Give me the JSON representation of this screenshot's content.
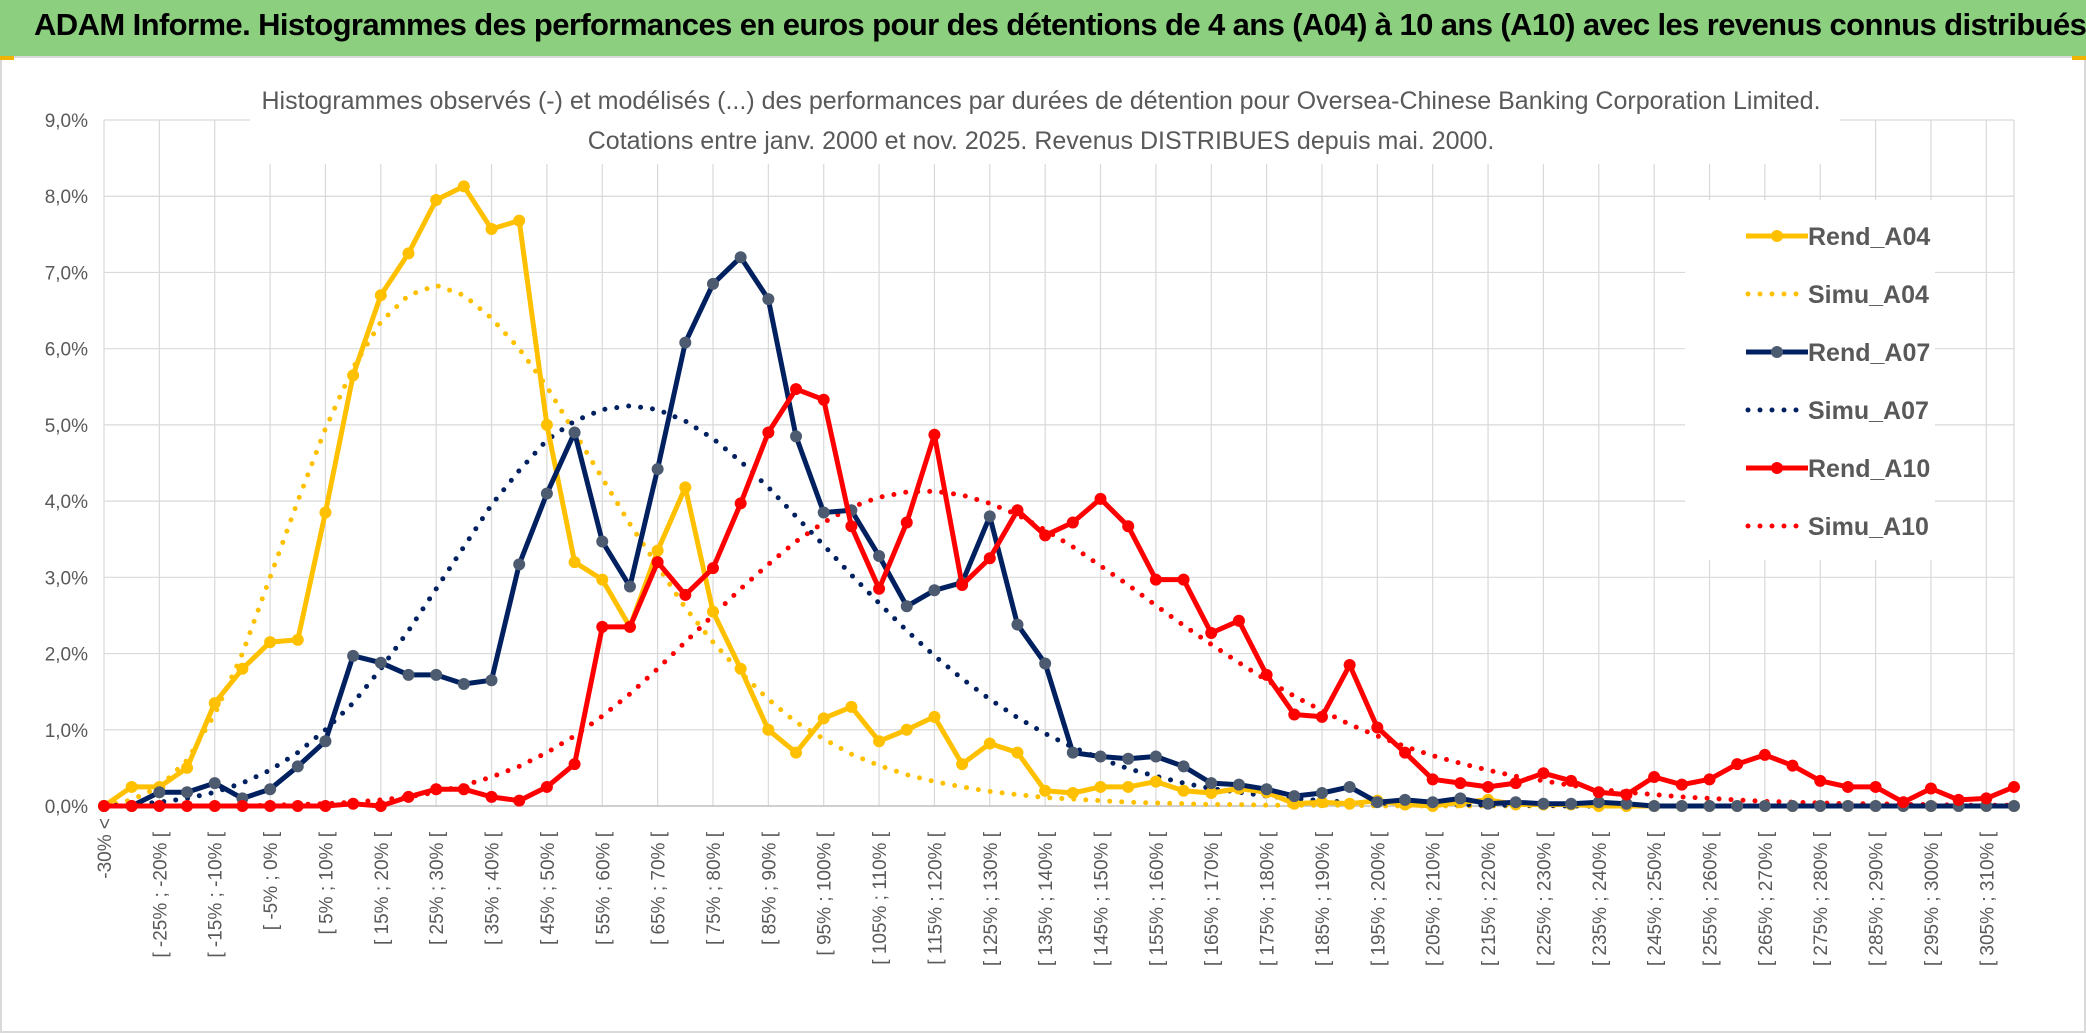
{
  "header": {
    "banner": "ADAM Informe. Histogrammes des performances en euros pour des détentions de 4 ans (A04) à 10 ans (A10) avec les revenus connus distribués"
  },
  "colors": {
    "banner_bg": "#8bcf7f",
    "a04": "#ffc000",
    "a07": "#002060",
    "a07_marker": "#4d5b70",
    "a10": "#ff0000",
    "grid": "#d9d9d9",
    "text": "#595959"
  },
  "chart_data": {
    "type": "line",
    "title": [
      "Histogrammes observés (-) et modélisés (...) des performances par durées de détention pour Oversea-Chinese Banking Corporation Limited.",
      "Cotations entre janv. 2000 et nov. 2025. Revenus DISTRIBUES depuis mai. 2000."
    ],
    "ylim": [
      0,
      9
    ],
    "yticks": [
      "0,0%",
      "1,0%",
      "2,0%",
      "3,0%",
      "4,0%",
      "5,0%",
      "6,0%",
      "7,0%",
      "8,0%",
      "9,0%"
    ],
    "xtick_labels": [
      "-30% <",
      "[ -25% ; -20% [",
      "[ -15% ; -10% [",
      "[ -5% ; 0% [",
      "[ 5% ; 10% [",
      "[ 15% ; 20% [",
      "[ 25% ; 30% [",
      "[ 35% ; 40% [",
      "[ 45% ; 50% [",
      "[ 55% ; 60% [",
      "[ 65% ; 70% [",
      "[ 75% ; 80% [",
      "[ 85% ; 90% [",
      "[ 95% ; 100% [",
      "[ 105% ; 110% [",
      "[ 115% ; 120% [",
      "[ 125% ; 130% [",
      "[ 135% ; 140% [",
      "[ 145% ; 150% [",
      "[ 155% ; 160% [",
      "[ 165% ; 170% [",
      "[ 175% ; 180% [",
      "[ 185% ; 190% [",
      "[ 195% ; 200% [",
      "[ 205% ; 210% [",
      "[ 215% ; 220% [",
      "[ 225% ; 230% [",
      "[ 235% ; 240% [",
      "[ 245% ; 250% [",
      "[ 255% ; 260% [",
      "[ 265% ; 270% [",
      "[ 275% ; 280% [",
      "[ 285% ; 290% [",
      "[ 295% ; 300% [",
      "[ 305% ; 310% ["
    ],
    "n_categories": 70,
    "legend_position": "right",
    "series": [
      {
        "name": "Rend_A04",
        "style": "solid",
        "color": "#ffc000",
        "values": [
          0.0,
          0.25,
          0.25,
          0.5,
          1.35,
          1.8,
          2.15,
          2.18,
          3.85,
          5.65,
          6.7,
          7.25,
          7.95,
          8.13,
          7.57,
          7.68,
          5.0,
          3.2,
          2.97,
          2.35,
          3.35,
          4.18,
          2.55,
          1.8,
          1.0,
          0.7,
          1.15,
          1.3,
          0.85,
          1.0,
          1.17,
          0.55,
          0.82,
          0.7,
          0.2,
          0.17,
          0.25,
          0.25,
          0.32,
          0.2,
          0.17,
          0.23,
          0.18,
          0.03,
          0.05,
          0.03,
          0.07,
          0.02,
          0.0,
          0.05,
          0.08,
          0.02,
          0.02,
          0.02,
          0.0,
          0.0,
          0.0,
          0.0,
          0.0,
          0.0,
          0.0,
          0.0,
          0.0,
          0.0,
          0.0,
          0.0,
          0.0,
          0.0,
          0.0,
          0.0
        ]
      },
      {
        "name": "Simu_A04",
        "style": "dotted",
        "color": "#ffc000",
        "values": [
          0.0,
          0.08,
          0.25,
          0.6,
          1.2,
          2.0,
          3.0,
          4.0,
          4.95,
          5.75,
          6.35,
          6.7,
          6.83,
          6.7,
          6.4,
          6.0,
          5.5,
          4.9,
          4.3,
          3.7,
          3.15,
          2.6,
          2.15,
          1.75,
          1.4,
          1.1,
          0.88,
          0.68,
          0.53,
          0.41,
          0.32,
          0.25,
          0.19,
          0.15,
          0.11,
          0.09,
          0.07,
          0.05,
          0.04,
          0.03,
          0.02,
          0.02,
          0.01,
          0.01,
          0.01,
          0.01,
          0.0,
          0.0,
          0.0,
          0.0,
          0.0,
          0.0,
          0.0,
          0.0,
          0.0,
          0.0,
          0.0,
          0.0,
          0.0,
          0.0,
          0.0,
          0.0,
          0.0,
          0.0,
          0.0,
          0.0,
          0.0,
          0.0,
          0.0,
          0.0
        ]
      },
      {
        "name": "Rend_A07",
        "style": "solid",
        "color": "#002060",
        "values": [
          0.0,
          0.0,
          0.18,
          0.18,
          0.3,
          0.1,
          0.22,
          0.52,
          0.85,
          1.97,
          1.88,
          1.72,
          1.72,
          1.6,
          1.65,
          3.17,
          4.1,
          4.9,
          3.47,
          2.88,
          4.42,
          6.08,
          6.85,
          7.2,
          6.65,
          4.85,
          3.85,
          3.88,
          3.28,
          2.62,
          2.83,
          2.93,
          3.8,
          2.38,
          1.87,
          0.7,
          0.65,
          0.62,
          0.65,
          0.52,
          0.3,
          0.28,
          0.22,
          0.13,
          0.17,
          0.25,
          0.05,
          0.08,
          0.05,
          0.1,
          0.03,
          0.05,
          0.03,
          0.03,
          0.05,
          0.03,
          0.0,
          0.0,
          0.0,
          0.0,
          0.0,
          0.0,
          0.0,
          0.0,
          0.0,
          0.0,
          0.0,
          0.0,
          0.0,
          0.0
        ]
      },
      {
        "name": "Simu_A07",
        "style": "dotted",
        "color": "#002060",
        "values": [
          0.0,
          0.02,
          0.05,
          0.1,
          0.18,
          0.3,
          0.47,
          0.7,
          1.0,
          1.35,
          1.8,
          2.3,
          2.85,
          3.4,
          3.95,
          4.4,
          4.8,
          5.05,
          5.2,
          5.25,
          5.2,
          5.05,
          4.82,
          4.52,
          4.18,
          3.8,
          3.42,
          3.03,
          2.66,
          2.3,
          1.97,
          1.67,
          1.4,
          1.16,
          0.95,
          0.77,
          0.62,
          0.49,
          0.39,
          0.3,
          0.23,
          0.18,
          0.13,
          0.1,
          0.07,
          0.05,
          0.04,
          0.03,
          0.02,
          0.02,
          0.01,
          0.01,
          0.01,
          0.0,
          0.0,
          0.0,
          0.0,
          0.0,
          0.0,
          0.0,
          0.0,
          0.0,
          0.0,
          0.0,
          0.0,
          0.0,
          0.0,
          0.0,
          0.0,
          0.0
        ]
      },
      {
        "name": "Rend_A10",
        "style": "solid",
        "color": "#ff0000",
        "values": [
          0.0,
          0.0,
          0.0,
          0.0,
          0.0,
          0.0,
          0.0,
          0.0,
          0.0,
          0.03,
          0.0,
          0.12,
          0.22,
          0.22,
          0.12,
          0.07,
          0.25,
          0.55,
          2.35,
          2.35,
          3.2,
          2.77,
          3.12,
          3.97,
          4.9,
          5.47,
          5.33,
          3.67,
          2.85,
          3.72,
          4.87,
          2.9,
          3.25,
          3.88,
          3.55,
          3.72,
          4.03,
          3.67,
          2.97,
          2.97,
          2.27,
          2.43,
          1.72,
          1.2,
          1.17,
          1.85,
          1.03,
          0.7,
          0.35,
          0.3,
          0.25,
          0.3,
          0.43,
          0.33,
          0.18,
          0.15,
          0.38,
          0.28,
          0.35,
          0.55,
          0.67,
          0.53,
          0.33,
          0.25,
          0.25,
          0.05,
          0.23,
          0.08,
          0.1,
          0.25
        ]
      },
      {
        "name": "Simu_A10",
        "style": "dotted",
        "color": "#ff0000",
        "values": [
          0.0,
          0.0,
          0.0,
          0.0,
          0.0,
          0.0,
          0.01,
          0.02,
          0.03,
          0.05,
          0.08,
          0.12,
          0.18,
          0.27,
          0.38,
          0.52,
          0.7,
          0.92,
          1.18,
          1.47,
          1.8,
          2.15,
          2.5,
          2.85,
          3.17,
          3.47,
          3.72,
          3.92,
          4.05,
          4.12,
          4.13,
          4.08,
          3.97,
          3.82,
          3.62,
          3.4,
          3.15,
          2.9,
          2.63,
          2.37,
          2.12,
          1.88,
          1.65,
          1.44,
          1.25,
          1.07,
          0.92,
          0.78,
          0.66,
          0.56,
          0.47,
          0.39,
          0.33,
          0.27,
          0.22,
          0.18,
          0.15,
          0.12,
          0.1,
          0.08,
          0.06,
          0.05,
          0.04,
          0.03,
          0.03,
          0.02,
          0.02,
          0.01,
          0.01,
          0.01
        ]
      }
    ]
  }
}
